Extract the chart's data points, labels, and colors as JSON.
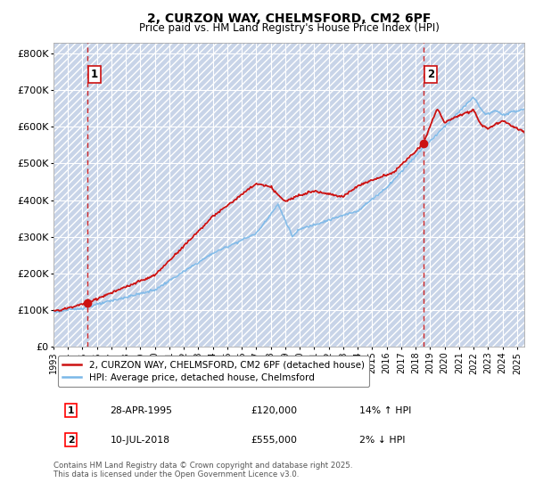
{
  "title": "2, CURZON WAY, CHELMSFORD, CM2 6PF",
  "subtitle": "Price paid vs. HM Land Registry's House Price Index (HPI)",
  "ylim": [
    0,
    830000
  ],
  "yticks": [
    0,
    100000,
    200000,
    300000,
    400000,
    500000,
    600000,
    700000,
    800000
  ],
  "ytick_labels": [
    "£0",
    "£100K",
    "£200K",
    "£300K",
    "£400K",
    "£500K",
    "£600K",
    "£700K",
    "£800K"
  ],
  "sale1_x": 1995.32,
  "sale1_y": 120000,
  "sale1_label": "1",
  "sale2_x": 2018.54,
  "sale2_y": 555000,
  "sale2_label": "2",
  "hpi_color": "#7ab8e8",
  "price_color": "#cc1111",
  "vline_color": "#cc1111",
  "bg_color": "#e8eef8",
  "hatch_color": "#c8d4e8",
  "grid_color": "#ffffff",
  "legend1_text": "2, CURZON WAY, CHELMSFORD, CM2 6PF (detached house)",
  "legend2_text": "HPI: Average price, detached house, Chelmsford",
  "footnote": "Contains HM Land Registry data © Crown copyright and database right 2025.\nThis data is licensed under the Open Government Licence v3.0.",
  "xlim_start": 1993.0,
  "xlim_end": 2025.5,
  "ann1_date": "28-APR-1995",
  "ann1_price": "£120,000",
  "ann1_hpi": "14% ↑ HPI",
  "ann2_date": "10-JUL-2018",
  "ann2_price": "£555,000",
  "ann2_hpi": "2% ↓ HPI"
}
